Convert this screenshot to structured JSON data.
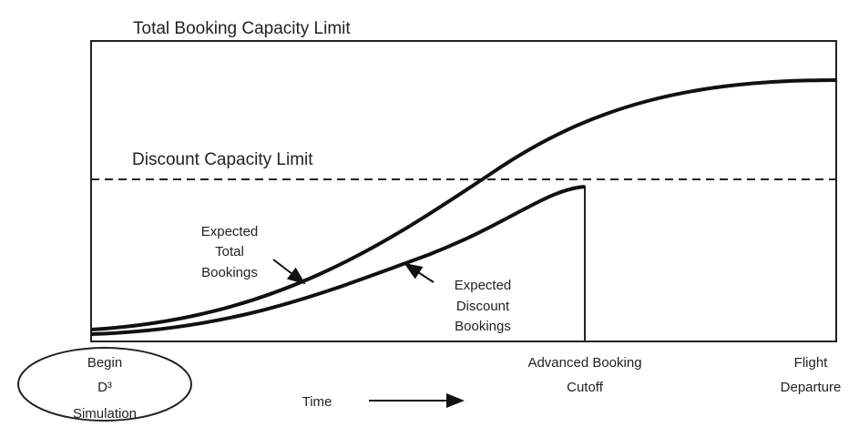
{
  "title": "Total Booking Capacity Limit",
  "discount_limit": "Discount Capacity Limit",
  "total_curve_label": [
    "Expected",
    "Total",
    "Bookings"
  ],
  "discount_curve_label": [
    "Expected",
    "Discount",
    "Bookings"
  ],
  "begin_label": [
    "Begin",
    "D³",
    "Simulation"
  ],
  "time_label": "Time",
  "cutoff_label": [
    "Advanced Booking",
    "Cutoff"
  ],
  "departure_label": [
    "Flight",
    "Departure"
  ]
}
